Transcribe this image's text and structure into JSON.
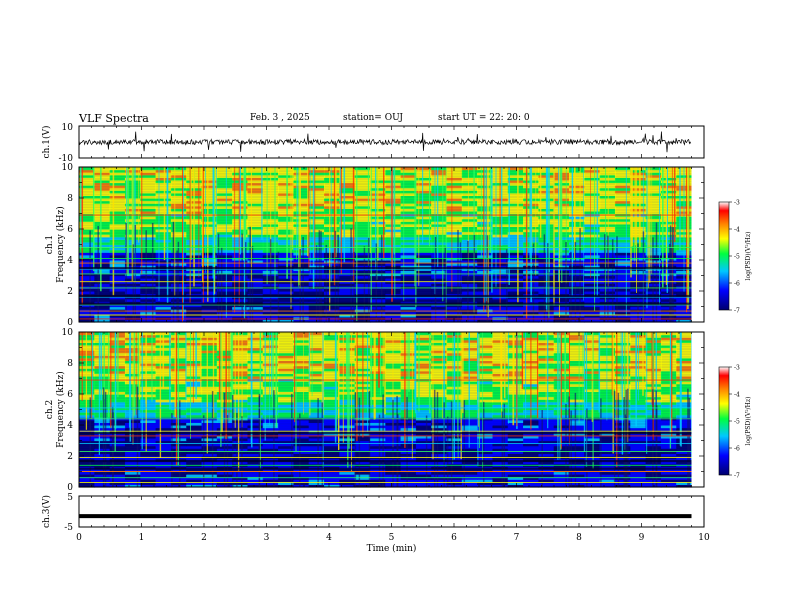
{
  "header": {
    "title": "VLF Spectra",
    "date": "Feb. 3 , 2025",
    "station": "station= OUJ",
    "start": "start UT = 22: 20: 0"
  },
  "chart_data": [
    {
      "type": "line",
      "ylabel": "ch.1(V)",
      "ylim": [
        -10,
        10
      ],
      "ytick_labels": [
        "10",
        "-10"
      ],
      "xlim": [
        0,
        10
      ],
      "description_level": 0
    },
    {
      "type": "heatmap",
      "ylabel_top": "ch.1",
      "ylabel": "Frequency (kHz)",
      "ylim": [
        0,
        10
      ],
      "ytick_labels": [
        "0",
        "2",
        "4",
        "6",
        "8",
        "10"
      ],
      "xlim": [
        0,
        10
      ],
      "data_end_min": 9.8,
      "colorbar": {
        "label": "log(PSD)(V²/Hz)",
        "range": [
          -7,
          -3
        ],
        "tick_labels": [
          "-3",
          "-4",
          "-5",
          "-6",
          "-7"
        ]
      },
      "colors": [
        "#00006e",
        "#0000ff",
        "#00c8ff",
        "#00ff40",
        "#ffff00",
        "#ff8000",
        "#ff0000",
        "#ffffff"
      ]
    },
    {
      "type": "heatmap",
      "ylabel_top": "ch.2",
      "ylabel": "Frequency (kHz)",
      "ylim": [
        0,
        10
      ],
      "ytick_labels": [
        "0",
        "2",
        "4",
        "6",
        "8",
        "10"
      ],
      "xlim": [
        0,
        10
      ],
      "data_end_min": 9.8,
      "colorbar": {
        "label": "log(PSD)(V²/Hz)",
        "range": [
          -7,
          -3
        ],
        "tick_labels": [
          "-3",
          "-4",
          "-5",
          "-6",
          "-7"
        ]
      }
    },
    {
      "type": "line",
      "ylabel": "ch.3(V)",
      "ylim": [
        -5,
        5
      ],
      "ytick_labels": [
        "5",
        "-5"
      ],
      "xlim": [
        0,
        10
      ],
      "level": -1.5,
      "xlabel": "Time (min)",
      "xtick_labels": [
        "0",
        "1",
        "2",
        "3",
        "4",
        "5",
        "6",
        "7",
        "8",
        "9",
        "10"
      ]
    }
  ]
}
